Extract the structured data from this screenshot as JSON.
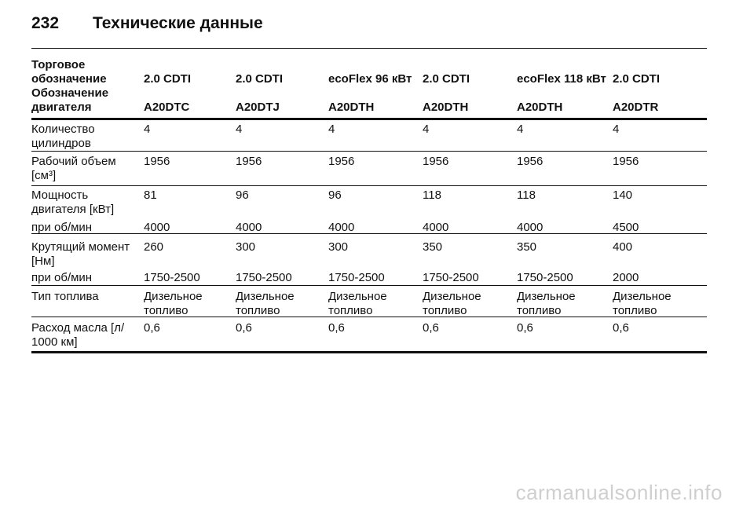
{
  "header": {
    "page_number": "232",
    "title": "Технические данные"
  },
  "table": {
    "header_rows": [
      {
        "label": "Торговое обозначение",
        "cells": [
          "2.0 CDTI",
          "2.0 CDTI",
          "ecoFlex 96 кВт",
          "2.0 CDTI",
          "ecoFlex 118 кВт",
          "2.0 CDTI"
        ]
      },
      {
        "label": "Обозначение двигателя",
        "cells": [
          "A20DTC",
          "A20DTJ",
          "A20DTH",
          "A20DTH",
          "A20DTH",
          "A20DTR"
        ]
      }
    ],
    "rows": [
      {
        "label": "Количество цилиндров",
        "cells": [
          "4",
          "4",
          "4",
          "4",
          "4",
          "4"
        ]
      },
      {
        "label": "Рабочий объем [см³]",
        "cells": [
          "1956",
          "1956",
          "1956",
          "1956",
          "1956",
          "1956"
        ]
      },
      {
        "label": "Мощность двигателя [кВт]",
        "cells": [
          "81",
          "96",
          "96",
          "118",
          "118",
          "140"
        ]
      },
      {
        "label": "при об/мин",
        "cells": [
          "4000",
          "4000",
          "4000",
          "4000",
          "4000",
          "4500"
        ]
      },
      {
        "label": "Крутящий момент [Нм]",
        "cells": [
          "260",
          "300",
          "300",
          "350",
          "350",
          "400"
        ]
      },
      {
        "label": "при об/мин",
        "cells": [
          "1750-2500",
          "1750-2500",
          "1750-2500",
          "1750-2500",
          "1750-2500",
          "2000"
        ]
      },
      {
        "label": "Тип топлива",
        "cells": [
          "Дизельное топливо",
          "Дизельное топливо",
          "Дизельное топливо",
          "Дизельное топливо",
          "Дизельное топливо",
          "Дизельное топливо"
        ]
      },
      {
        "label": "Расход масла [л/ 1000 км]",
        "cells": [
          "0,6",
          "0,6",
          "0,6",
          "0,6",
          "0,6",
          "0,6"
        ]
      }
    ]
  },
  "watermark": "carmanualsonline.info"
}
